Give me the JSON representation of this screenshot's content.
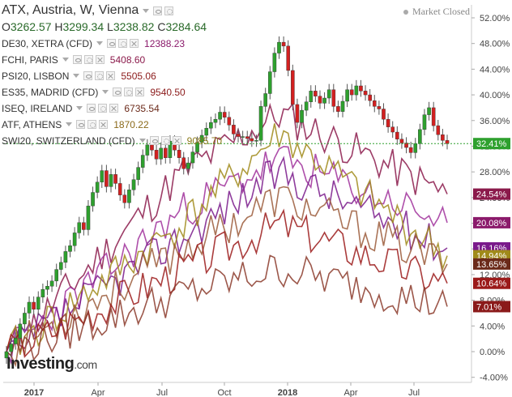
{
  "header": {
    "title": "ATX, Austria, W, Vienna",
    "market_status": "Market Closed",
    "ohlc": {
      "o_label": "O",
      "o": "3262.57",
      "h_label": "H",
      "h": "3299.34",
      "l_label": "L",
      "l": "3238.82",
      "c_label": "C",
      "c": "3284.64"
    }
  },
  "legend": [
    {
      "name": "DE30, XETRA (CFD)",
      "value": "12388.23",
      "color": "#8b1a6b"
    },
    {
      "name": "FCHI, PARIS",
      "value": "5408.60",
      "color": "#8b1a4b"
    },
    {
      "name": "PSI20, LISBON",
      "value": "5505.06",
      "color": "#8b1a1a"
    },
    {
      "name": "ES35, MADRID (CFD)",
      "value": "9540.50",
      "color": "#8b1a1a"
    },
    {
      "name": "ISEQ, IRELAND",
      "value": "6735.54",
      "color": "#6b2a1a"
    },
    {
      "name": "ATF, ATHENS",
      "value": "1870.22",
      "color": "#8b6a1a"
    },
    {
      "name": "SWI20, SWITZERLAND (CFD)",
      "value": "9085.70",
      "color": "#8b7a1a"
    }
  ],
  "brand": {
    "name": "Investing",
    "suffix": ".com"
  },
  "chart_data": {
    "type": "line",
    "x_ticks": [
      "2017",
      "Apr",
      "Jul",
      "Oct",
      "2018",
      "Apr",
      "Jul"
    ],
    "y_ticks": [
      "52.00%",
      "48.00%",
      "44.00%",
      "40.00%",
      "36.00%",
      "32.00%",
      "28.00%",
      "24.00%",
      "20.00%",
      "16.00%",
      "12.00%",
      "8.00%",
      "4.00%",
      "0.00%",
      "-4.00%"
    ],
    "ylim": [
      -4,
      52
    ],
    "end_labels": [
      {
        "label": "32.41%",
        "value": 32.41,
        "color": "#2ea02e"
      },
      {
        "label": "24.54%",
        "value": 24.54,
        "color": "#8b1a4b"
      },
      {
        "label": "20.08%",
        "value": 20.08,
        "color": "#8b1a6b"
      },
      {
        "label": "16.16%",
        "value": 16.16,
        "color": "#7a1a8b"
      },
      {
        "label": "14.94%",
        "value": 14.94,
        "color": "#a08a1a"
      },
      {
        "label": "13.65%",
        "value": 13.65,
        "color": "#6b2a1a"
      },
      {
        "label": "10.64%",
        "value": 10.64,
        "color": "#9b1a1a"
      },
      {
        "label": "7.01%",
        "value": 7.01,
        "color": "#8b1a1a"
      }
    ],
    "candles_series": {
      "name": "ATX",
      "up_color": "#2ea02e",
      "down_color": "#d22020",
      "close": [
        0,
        1.2,
        2.1,
        4.3,
        6.0,
        7.7,
        6.6,
        8.5,
        9.7,
        10.2,
        11.0,
        12.8,
        13.9,
        15.6,
        16.5,
        18.5,
        20.1,
        19.0,
        22.7,
        24.8,
        26.4,
        28.2,
        25.7,
        27.6,
        26.2,
        24.4,
        23.2,
        25.2,
        26.8,
        28.7,
        30.6,
        32.2,
        31.4,
        30.0,
        31.7,
        30.2,
        32.8,
        31.4,
        30.2,
        28.5,
        29.4,
        31.1,
        32.6,
        33.7,
        34.8,
        35.7,
        36.2,
        37.3,
        36.5,
        35.3,
        33.9,
        33.5,
        33.5,
        33.2,
        32.8,
        32.9,
        38.2,
        40.2,
        43.6,
        46.5,
        48.2,
        47.6,
        43.8,
        38.5,
        35.7,
        37.6,
        38.9,
        40.6,
        39.8,
        38.7,
        39.5,
        40.8,
        38.2,
        37.4,
        39.0,
        40.8,
        40.0,
        41.4,
        40.6,
        40.0,
        39.1,
        38.2,
        37.8,
        36.2,
        35.0,
        34.2,
        33.1,
        32.5,
        31.8,
        31.0,
        32.4,
        34.6,
        36.9,
        38.0,
        35.2,
        33.8,
        32.9,
        32.4
      ],
      "lines_end_values": [
        24.54,
        20.08,
        16.16,
        14.94,
        13.65,
        10.64,
        7.01
      ]
    },
    "line_series": [
      {
        "color": "#8b1a4b",
        "end": 24.54
      },
      {
        "color": "#a0309b",
        "end": 20.08
      },
      {
        "color": "#7a1a8b",
        "end": 16.16
      },
      {
        "color": "#a08a1a",
        "end": 14.94
      },
      {
        "color": "#9b5a3a",
        "end": 13.65
      },
      {
        "color": "#9b1a1a",
        "end": 10.64
      },
      {
        "color": "#8b3a2a",
        "end": 7.01
      }
    ]
  }
}
